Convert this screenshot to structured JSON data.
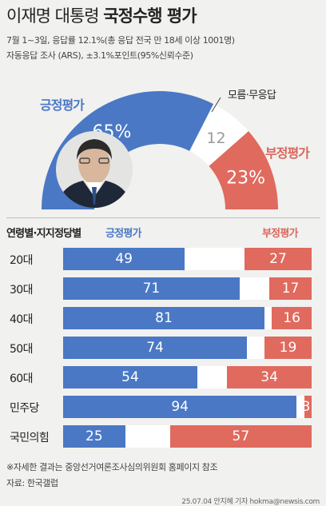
{
  "header": {
    "title_light": "이재명 대통령 ",
    "title_bold": "국정수행 평가",
    "subtitle_1": "7월 1~3일, 응답률 12.1%(총 응답 전국 만 18세 이상 1001명)",
    "subtitle_2": "자동응답 조사 (ARS), ±3.1%포인트(95%신뢰수준)"
  },
  "colors": {
    "positive": "#4a78c5",
    "negative": "#e06a5e",
    "dont_know": "#ffffff",
    "background": "#f1f1ef"
  },
  "chart_data": [
    {
      "type": "pie",
      "variant": "half-donut",
      "categories": [
        "긍정평가",
        "모름·무응답",
        "부정평가"
      ],
      "values": [
        65,
        12,
        23
      ],
      "value_labels": [
        "65%",
        "12",
        "23%"
      ],
      "units": "%"
    },
    {
      "type": "bar",
      "stacked": true,
      "title": "연령별·지지정당별",
      "categories": [
        "20대",
        "30대",
        "40대",
        "50대",
        "60대",
        "민주당",
        "국민의힘"
      ],
      "series": [
        {
          "name": "긍정평가",
          "values": [
            49,
            71,
            81,
            74,
            54,
            94,
            25
          ]
        },
        {
          "name": "부정평가",
          "values": [
            27,
            17,
            16,
            19,
            34,
            3,
            57
          ]
        }
      ],
      "legend_position": "top"
    }
  ],
  "footer": {
    "note": "※자세한 결과는 중앙선거여론조사심의위원회 홈페이지 참조",
    "source": "자료: 한국갤럽",
    "credit": "25.07.04 안지혜 기자 hokma@newsis.com"
  }
}
